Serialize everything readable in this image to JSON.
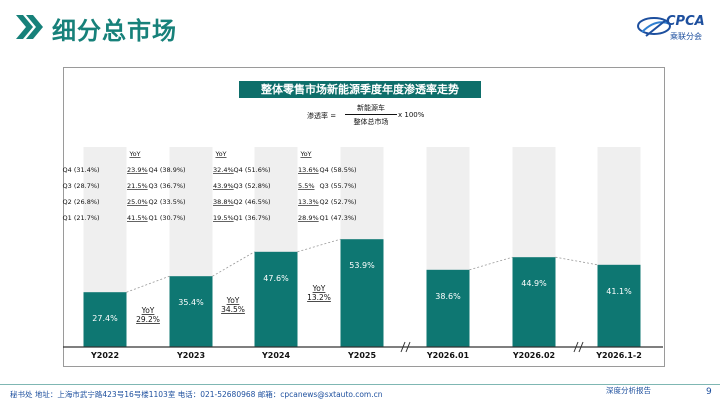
{
  "header": {
    "title": "细分总市场",
    "logo_name": "CPCA",
    "logo_subtitle": "乘联分会"
  },
  "formula": {
    "lhs": "渗透率 =",
    "numerator": "新能源车",
    "denominator": "整体总市场",
    "rhs": "x 100%"
  },
  "footer": {
    "address": "秘书处  地址：上海市武宁路423号16号楼1103室  电话：021-52680968  邮箱：cpcanews@sxtauto.com.cn",
    "report_type": "深度分析报告",
    "page": "9"
  },
  "colors": {
    "accent": "#17817a",
    "bar": "#0e7772",
    "bar_bg": "#efefef",
    "title_bg": "#0e6e6a",
    "brand_blue": "#1d4f9e"
  },
  "chart_data": {
    "type": "bar",
    "title": "整体零售市场新能源季度年度渗透率走势",
    "categories": [
      "Y2022",
      "Y2023",
      "Y2024",
      "Y2025",
      "Y2026.01",
      "Y2026.02",
      "Y2026.1-2"
    ],
    "values": [
      27.4,
      35.4,
      47.6,
      53.9,
      38.6,
      44.9,
      41.1
    ],
    "value_labels": [
      "27.4%",
      "35.4%",
      "47.6%",
      "53.9%",
      "38.6%",
      "44.9%",
      "41.1%"
    ],
    "ylim": [
      0,
      100
    ],
    "axis_breaks_after": [
      "Y2025",
      "Y2026.02"
    ],
    "yoy_header": "YoY",
    "annual_yoy": [
      {
        "after": "Y2022",
        "label": "YoY",
        "value": "29.2%"
      },
      {
        "after": "Y2023",
        "label": "YoY",
        "value": "34.5%"
      },
      {
        "after": "Y2024",
        "label": "YoY",
        "value": "13.2%"
      }
    ],
    "quarters": [
      {
        "year": "Y2022",
        "rows": [
          {
            "label": "Q4 (31.4%)",
            "yoy": "23.9%"
          },
          {
            "label": "Q3 (28.7%)",
            "yoy": "21.5%"
          },
          {
            "label": "Q2 (26.8%)",
            "yoy": "25.0%"
          },
          {
            "label": "Q1 (21.7%)",
            "yoy": "41.5%"
          }
        ]
      },
      {
        "year": "Y2023",
        "rows": [
          {
            "label": "Q4 (38.9%)",
            "yoy": "32.4%"
          },
          {
            "label": "Q3 (36.7%)",
            "yoy": "43.9%"
          },
          {
            "label": "Q2 (33.5%)",
            "yoy": "38.8%"
          },
          {
            "label": "Q1 (30.7%)",
            "yoy": "19.5%"
          }
        ]
      },
      {
        "year": "Y2024",
        "rows": [
          {
            "label": "Q4 (51.6%)",
            "yoy": "13.6%"
          },
          {
            "label": "Q3 (52.8%)",
            "yoy": "5.5%"
          },
          {
            "label": "Q2 (46.5%)",
            "yoy": "13.3%"
          },
          {
            "label": "Q1 (36.7%)",
            "yoy": "28.9%"
          }
        ]
      },
      {
        "year": "Y2025",
        "rows": [
          {
            "label": "Q4 (58.5%)",
            "yoy": ""
          },
          {
            "label": "Q3 (55.7%)",
            "yoy": ""
          },
          {
            "label": "Q2 (52.7%)",
            "yoy": ""
          },
          {
            "label": "Q1 (47.3%)",
            "yoy": ""
          }
        ]
      }
    ]
  }
}
